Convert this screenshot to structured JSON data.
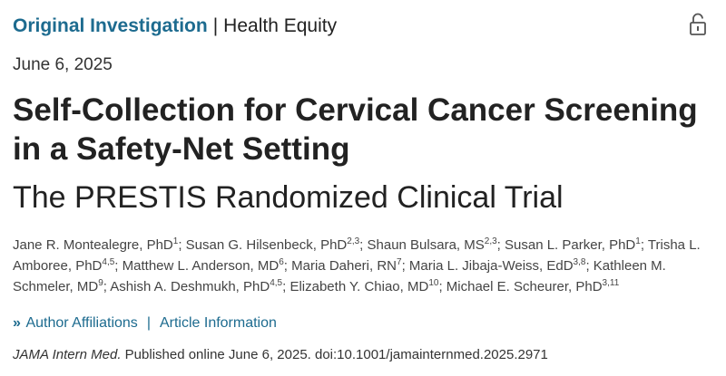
{
  "header": {
    "article_type": "Original Investigation",
    "separator": "|",
    "topic": "Health Equity",
    "lock_icon": "open-lock-icon"
  },
  "date": "June 6, 2025",
  "title": "Self-Collection for Cervical Cancer Screening in a Safety-Net Setting",
  "subtitle": "The PRESTIS Randomized Clinical Trial",
  "authors": [
    {
      "name": "Jane R. Montealegre, PhD",
      "aff": "1"
    },
    {
      "name": "Susan G. Hilsenbeck, PhD",
      "aff": "2,3"
    },
    {
      "name": "Shaun Bulsara, MS",
      "aff": "2,3"
    },
    {
      "name": "Susan L. Parker, PhD",
      "aff": "1"
    },
    {
      "name": "Trisha L. Amboree, PhD",
      "aff": "4,5"
    },
    {
      "name": "Matthew L. Anderson, MD",
      "aff": "6"
    },
    {
      "name": "Maria Daheri, RN",
      "aff": "7"
    },
    {
      "name": "Maria L. Jibaja-Weiss, EdD",
      "aff": "3,8"
    },
    {
      "name": "Kathleen M. Schmeler, MD",
      "aff": "9"
    },
    {
      "name": "Ashish A. Deshmukh, PhD",
      "aff": "4,5"
    },
    {
      "name": "Elizabeth Y. Chiao, MD",
      "aff": "10"
    },
    {
      "name": "Michael E. Scheurer, PhD",
      "aff": "3,11"
    }
  ],
  "links": {
    "chevron": "»",
    "affiliations": "Author Affiliations",
    "divider": "|",
    "article_info": "Article Information"
  },
  "citation": {
    "journal": "JAMA Intern Med.",
    "text": " Published online June 6, 2025. doi:10.1001/jamainternmed.2025.2971"
  },
  "colors": {
    "accent": "#1d6b8f",
    "text": "#222222"
  }
}
